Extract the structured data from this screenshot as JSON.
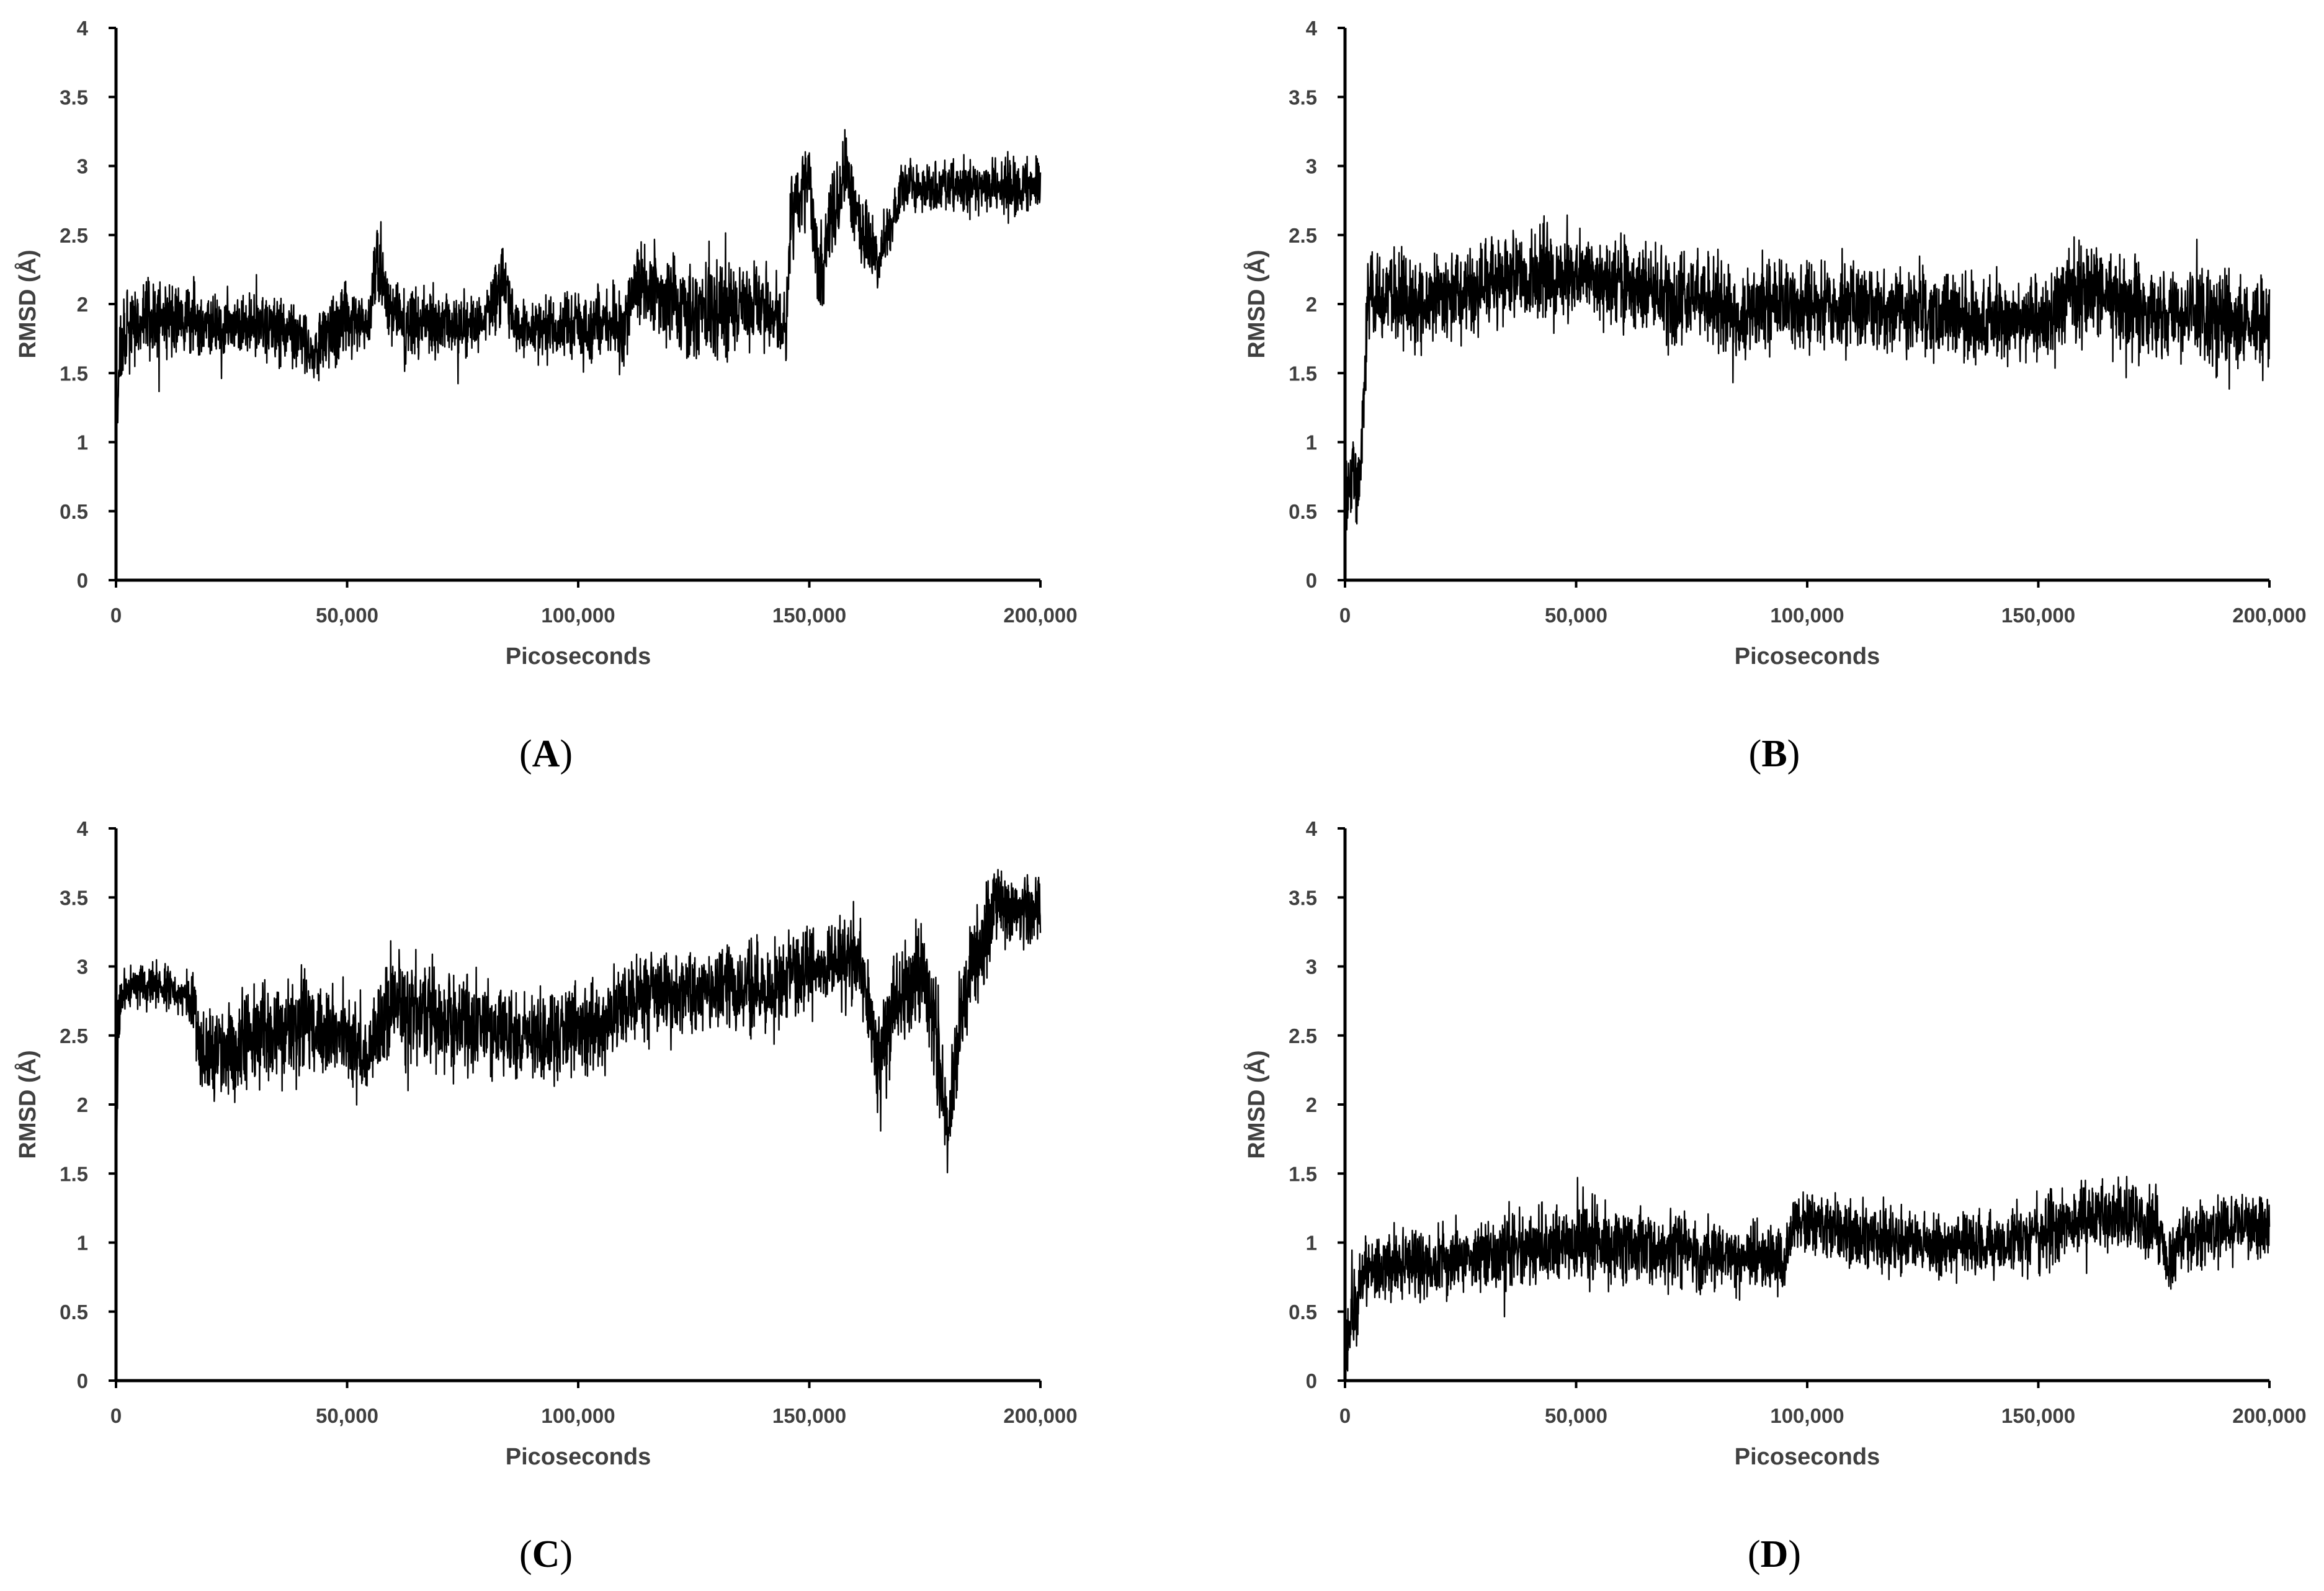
{
  "chart_data": [
    {
      "panel": "A",
      "type": "line",
      "xlabel": "Picoseconds",
      "ylabel": "RMSD (Å)",
      "xlim": [
        0,
        200000
      ],
      "ylim": [
        0,
        4
      ],
      "xticks": [
        "0",
        "50,000",
        "100,000",
        "150,000",
        "200,000"
      ],
      "yticks": [
        "0",
        "0.5",
        "1",
        "1.5",
        "2",
        "2.5",
        "3",
        "3.5",
        "4"
      ],
      "grid": false,
      "line_color": "#000000",
      "series": [
        {
          "x": [
            0,
            1000,
            3000,
            10000,
            20000,
            30000,
            40000,
            42000,
            45000,
            50000,
            55000,
            56000,
            60000,
            70000,
            80000,
            84000,
            86000,
            90000,
            100000,
            110000,
            112000,
            120000,
            130000,
            140000,
            145000,
            146000,
            148000,
            150000,
            152000,
            155000,
            158000,
            160000,
            163000,
            165000,
            170000,
            180000,
            190000,
            200000
          ],
          "y": [
            1.0,
            1.7,
            1.85,
            1.9,
            1.85,
            1.85,
            1.8,
            1.6,
            1.85,
            1.85,
            1.9,
            2.3,
            1.9,
            1.85,
            1.85,
            2.2,
            1.85,
            1.8,
            1.85,
            1.8,
            2.2,
            2.0,
            1.95,
            2.0,
            1.8,
            2.6,
            2.8,
            2.95,
            2.2,
            2.6,
            3.0,
            2.6,
            2.5,
            2.3,
            2.85,
            2.85,
            2.85,
            2.85
          ],
          "noise": [
            0.1,
            0.25,
            0.25,
            0.25,
            0.2,
            0.2,
            0.2,
            0.2,
            0.25,
            0.25,
            0.2,
            0.25,
            0.25,
            0.2,
            0.2,
            0.25,
            0.2,
            0.2,
            0.2,
            0.25,
            0.3,
            0.3,
            0.3,
            0.3,
            0.2,
            0.3,
            0.3,
            0.25,
            0.3,
            0.3,
            0.25,
            0.25,
            0.25,
            0.2,
            0.18,
            0.16,
            0.18,
            0.2
          ]
        }
      ]
    },
    {
      "panel": "B",
      "type": "line",
      "xlabel": "Picoseconds",
      "ylabel": "RMSD (Å)",
      "xlim": [
        0,
        200000
      ],
      "ylim": [
        0,
        4
      ],
      "xticks": [
        "0",
        "50,000",
        "100,000",
        "150,000",
        "200,000"
      ],
      "yticks": [
        "0",
        "0.5",
        "1",
        "1.5",
        "2",
        "2.5",
        "3",
        "3.5",
        "4"
      ],
      "grid": false,
      "line_color": "#000000",
      "series": [
        {
          "x": [
            0,
            2000,
            3500,
            5000,
            20000,
            40000,
            50000,
            60000,
            70000,
            80000,
            85000,
            90000,
            100000,
            120000,
            140000,
            150000,
            158000,
            162000,
            170000,
            180000,
            200000
          ],
          "y": [
            0.6,
            0.7,
            0.8,
            2.05,
            2.05,
            2.2,
            2.2,
            2.15,
            2.05,
            2.05,
            1.85,
            2.0,
            2.0,
            1.95,
            1.9,
            1.85,
            2.1,
            2.1,
            1.95,
            1.95,
            1.85
          ],
          "noise": [
            0.25,
            0.3,
            0.3,
            0.3,
            0.3,
            0.3,
            0.3,
            0.3,
            0.3,
            0.28,
            0.28,
            0.28,
            0.28,
            0.28,
            0.28,
            0.28,
            0.3,
            0.3,
            0.3,
            0.3,
            0.3
          ]
        }
      ]
    },
    {
      "panel": "C",
      "type": "line",
      "xlabel": "Picoseconds",
      "ylabel": "RMSD (Å)",
      "xlim": [
        0,
        200000
      ],
      "ylim": [
        0,
        4
      ],
      "xticks": [
        "0",
        "50,000",
        "100,000",
        "150,000",
        "200,000"
      ],
      "yticks": [
        "0",
        "0.5",
        "1",
        "1.5",
        "2",
        "2.5",
        "3",
        "3.5",
        "4"
      ],
      "grid": false,
      "line_color": "#000000",
      "series": [
        {
          "x": [
            0,
            500,
            2000,
            10000,
            17000,
            18000,
            25000,
            30000,
            40000,
            50000,
            55000,
            60000,
            70000,
            80000,
            90000,
            100000,
            105000,
            110000,
            120000,
            130000,
            140000,
            150000,
            160000,
            163000,
            165000,
            170000,
            175000,
            178000,
            180000,
            183000,
            188000,
            190000,
            195000,
            200000
          ],
          "y": [
            1.3,
            2.7,
            2.85,
            2.85,
            2.75,
            2.4,
            2.35,
            2.5,
            2.55,
            2.5,
            2.4,
            2.75,
            2.6,
            2.55,
            2.45,
            2.55,
            2.55,
            2.75,
            2.8,
            2.85,
            2.85,
            3.0,
            3.05,
            2.7,
            2.3,
            2.8,
            3.0,
            2.3,
            1.8,
            2.7,
            3.2,
            3.45,
            3.4,
            3.4
          ],
          "noise": [
            0.2,
            0.2,
            0.15,
            0.15,
            0.2,
            0.3,
            0.3,
            0.32,
            0.32,
            0.3,
            0.3,
            0.32,
            0.32,
            0.32,
            0.3,
            0.3,
            0.3,
            0.28,
            0.28,
            0.28,
            0.3,
            0.28,
            0.3,
            0.35,
            0.4,
            0.35,
            0.35,
            0.35,
            0.3,
            0.3,
            0.3,
            0.25,
            0.25,
            0.25
          ]
        }
      ]
    },
    {
      "panel": "D",
      "type": "line",
      "xlabel": "Picoseconds",
      "ylabel": "RMSD (Å)",
      "xlim": [
        0,
        200000
      ],
      "ylim": [
        0,
        4
      ],
      "xticks": [
        "0",
        "50,000",
        "100,000",
        "150,000",
        "200,000"
      ],
      "yticks": [
        "0",
        "0.5",
        "1",
        "1.5",
        "2",
        "2.5",
        "3",
        "3.5",
        "4"
      ],
      "grid": false,
      "line_color": "#000000",
      "series": [
        {
          "x": [
            0,
            2000,
            4000,
            10000,
            20000,
            30000,
            40000,
            50000,
            60000,
            70000,
            80000,
            90000,
            95000,
            97000,
            100000,
            110000,
            120000,
            130000,
            140000,
            150000,
            160000,
            170000,
            176000,
            178000,
            182000,
            190000,
            200000
          ],
          "y": [
            0.3,
            0.5,
            0.8,
            0.85,
            0.85,
            0.9,
            0.95,
            1.0,
            1.0,
            0.95,
            0.9,
            0.9,
            0.85,
            1.1,
            1.15,
            1.05,
            1.0,
            1.0,
            1.0,
            1.05,
            1.15,
            1.2,
            1.1,
            0.85,
            1.05,
            1.1,
            1.1
          ],
          "noise": [
            0.2,
            0.25,
            0.25,
            0.22,
            0.22,
            0.22,
            0.25,
            0.25,
            0.25,
            0.25,
            0.22,
            0.22,
            0.2,
            0.22,
            0.22,
            0.2,
            0.2,
            0.2,
            0.22,
            0.25,
            0.25,
            0.25,
            0.25,
            0.25,
            0.22,
            0.22,
            0.22
          ]
        }
      ]
    }
  ],
  "panel_labels": [
    {
      "open": "(",
      "letter": "A",
      "close": ")"
    },
    {
      "open": "(",
      "letter": "B",
      "close": ")"
    },
    {
      "open": "(",
      "letter": "C",
      "close": ")"
    },
    {
      "open": "(",
      "letter": "D",
      "close": ")"
    }
  ]
}
